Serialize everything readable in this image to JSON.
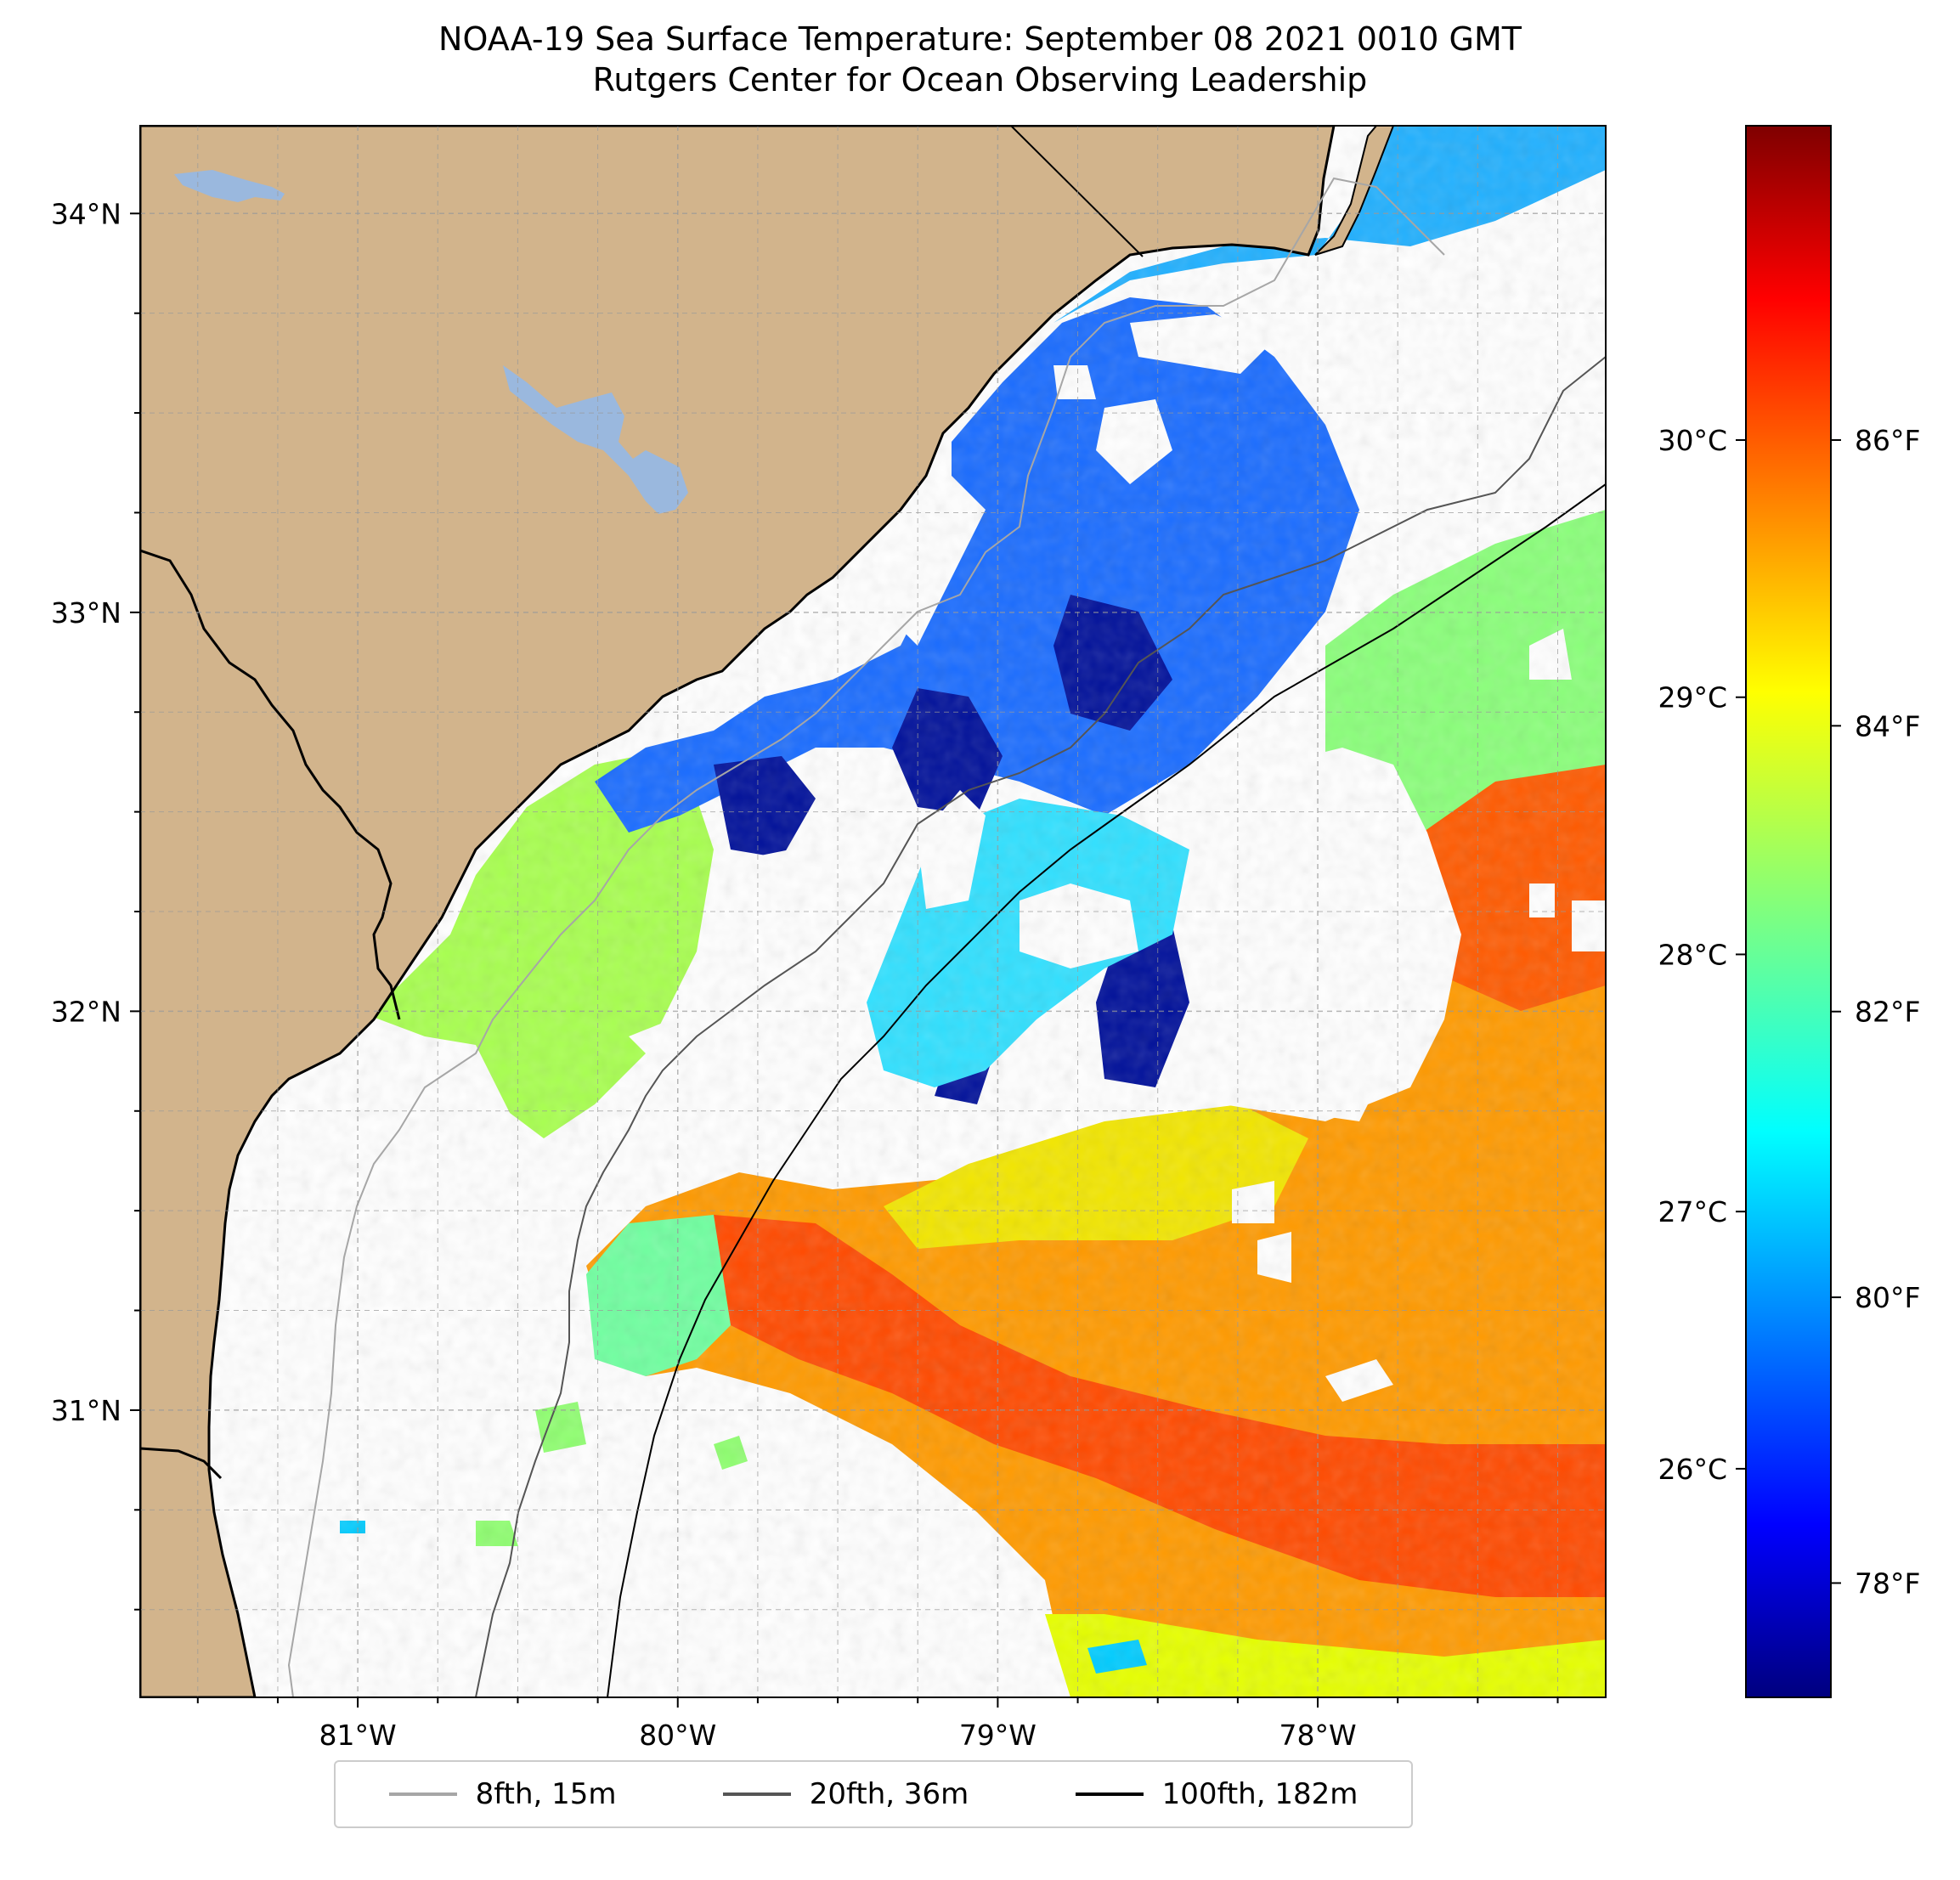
{
  "title": {
    "line1": "NOAA-19 Sea Surface Temperature: September 08 2021 0010 GMT",
    "line2": "Rutgers Center for Ocean Observing Leadership"
  },
  "map": {
    "lon_range": [
      -81.68,
      -77.1
    ],
    "lat_range": [
      30.28,
      34.22
    ],
    "lat_ticks": [
      {
        "value": 34,
        "label": "34°N"
      },
      {
        "value": 33,
        "label": "33°N"
      },
      {
        "value": 32,
        "label": "32°N"
      },
      {
        "value": 31,
        "label": "31°N"
      }
    ],
    "lon_ticks": [
      {
        "value": -81,
        "label": "81°W"
      },
      {
        "value": -80,
        "label": "80°W"
      },
      {
        "value": -79,
        "label": "79°W"
      },
      {
        "value": -78,
        "label": "78°W"
      }
    ],
    "gridlines": "dashed",
    "colors": {
      "land": "#d2b48c",
      "lake": "#9ab8de",
      "coast": "#000000",
      "no_data": "#ffffff"
    }
  },
  "colorbar": {
    "colormap": "jet",
    "fahrenheit_range": [
      77.2,
      88.2
    ],
    "celsius_ticks": [
      {
        "value": 26,
        "label": "26°C"
      },
      {
        "value": 27,
        "label": "27°C"
      },
      {
        "value": 28,
        "label": "28°C"
      },
      {
        "value": 29,
        "label": "29°C"
      },
      {
        "value": 30,
        "label": "30°C"
      }
    ],
    "fahrenheit_ticks": [
      {
        "value": 78,
        "label": "78°F"
      },
      {
        "value": 80,
        "label": "80°F"
      },
      {
        "value": 82,
        "label": "82°F"
      },
      {
        "value": 84,
        "label": "84°F"
      },
      {
        "value": 86,
        "label": "86°F"
      }
    ]
  },
  "legend": {
    "items": [
      {
        "label": "8fth, 15m",
        "color": "#a6a6a6"
      },
      {
        "label": "20fth, 36m",
        "color": "#555555"
      },
      {
        "label": "100fth, 182m",
        "color": "#000000"
      }
    ]
  }
}
